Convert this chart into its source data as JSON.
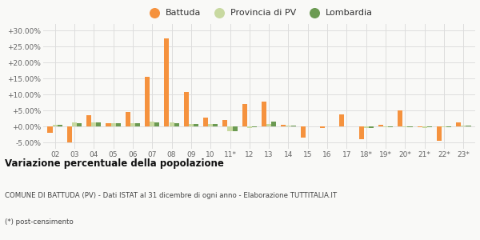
{
  "categories": [
    "02",
    "03",
    "04",
    "05",
    "06",
    "07",
    "08",
    "09",
    "10",
    "11*",
    "12",
    "13",
    "14",
    "15",
    "16",
    "17",
    "18*",
    "19*",
    "20*",
    "21*",
    "22*",
    "23*"
  ],
  "battuda": [
    -2.0,
    -5.0,
    3.5,
    1.0,
    4.5,
    15.5,
    27.5,
    10.8,
    2.7,
    2.0,
    7.0,
    7.7,
    0.5,
    -3.5,
    -0.5,
    3.8,
    -4.0,
    0.5,
    5.0,
    -0.3,
    -4.5,
    1.2
  ],
  "provincia": [
    0.5,
    1.2,
    1.3,
    1.0,
    1.0,
    1.5,
    1.2,
    0.8,
    0.8,
    -1.5,
    -0.5,
    0.8,
    0.3,
    0.1,
    0.1,
    0.1,
    -0.5,
    -0.3,
    -0.3,
    -0.5,
    -0.3,
    0.3
  ],
  "lombardia": [
    0.5,
    1.0,
    1.2,
    0.9,
    0.9,
    1.3,
    1.1,
    0.7,
    0.7,
    -1.5,
    -0.2,
    1.5,
    0.2,
    0.1,
    0.1,
    0.1,
    -0.5,
    -0.2,
    -0.2,
    -0.3,
    -0.2,
    0.3
  ],
  "battuda_color": "#f5923e",
  "provincia_color": "#c8d9a0",
  "lombardia_color": "#6b9a52",
  "bg_color": "#f9f9f7",
  "grid_color": "#dddddd",
  "title_bold": "Variazione percentuale della popolazione",
  "subtitle1": "COMUNE DI BATTUDA (PV) - Dati ISTAT al 31 dicembre di ogni anno - Elaborazione TUTTITALIA.IT",
  "subtitle2": "(*) post-censimento",
  "ymin": -7.0,
  "ymax": 32.0,
  "yticks": [
    -5.0,
    0.0,
    5.0,
    10.0,
    15.0,
    20.0,
    25.0,
    30.0
  ]
}
